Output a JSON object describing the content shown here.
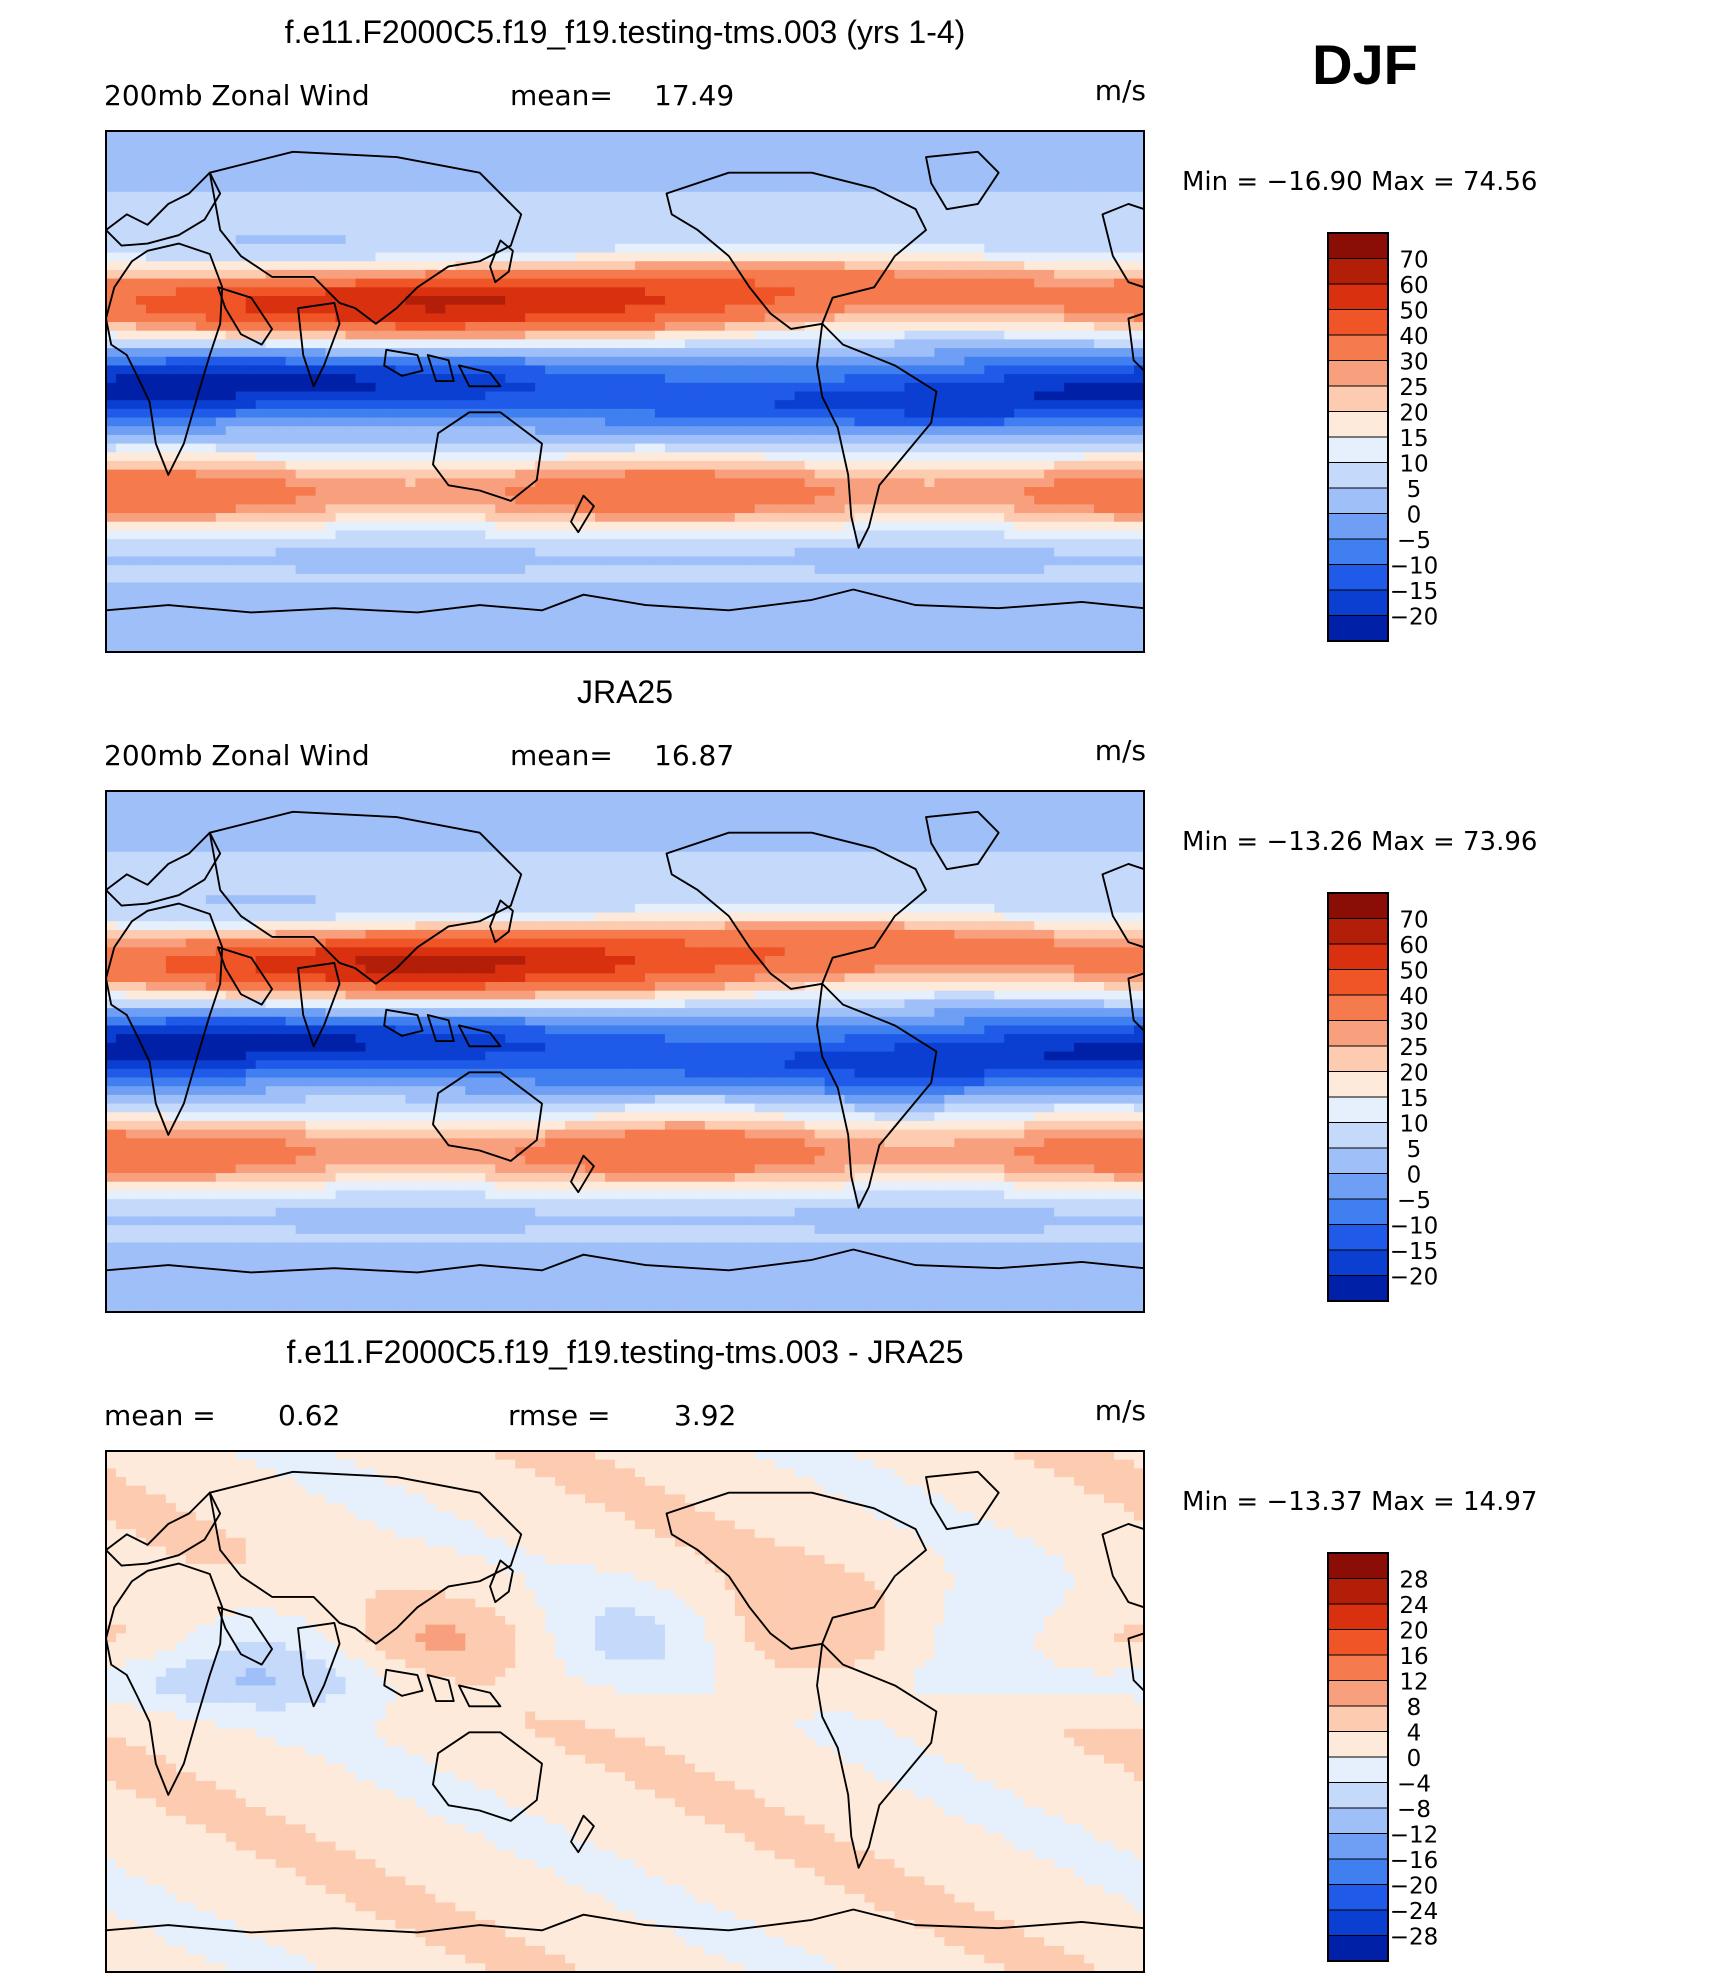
{
  "season": "DJF",
  "panels": [
    {
      "title": "f.e11.F2000C5.f19_f19.testing-tms.003 (yrs 1-4)",
      "left_label": "200mb  Zonal  Wind",
      "center_label": "mean=",
      "center_value": "17.49",
      "units": "m/s",
      "min_label": "Min",
      "min_value": "−16.90",
      "max_label": "Max",
      "max_value": "74.56",
      "palette": "full",
      "colorbar_labels": [
        "70",
        "60",
        "50",
        "40",
        "30",
        "25",
        "20",
        "15",
        "10",
        "5",
        "0",
        "−5",
        "−10",
        "−15",
        "−20"
      ],
      "field": "model"
    },
    {
      "title": "JRA25",
      "left_label": "200mb  Zonal  Wind",
      "center_label": "mean=",
      "center_value": "16.87",
      "units": "m/s",
      "min_label": "Min",
      "min_value": "−13.26",
      "max_label": "Max",
      "max_value": "73.96",
      "palette": "full",
      "colorbar_labels": [
        "70",
        "60",
        "50",
        "40",
        "30",
        "25",
        "20",
        "15",
        "10",
        "5",
        "0",
        "−5",
        "−10",
        "−15",
        "−20"
      ],
      "field": "obs"
    },
    {
      "title": "f.e11.F2000C5.f19_f19.testing-tms.003 - JRA25",
      "left_label": "mean  =",
      "left_value": "0.62",
      "center_label": "rmse  =",
      "center_value": "3.92",
      "units": "m/s",
      "min_label": "Min",
      "min_value": "−13.37",
      "max_label": "Max",
      "max_value": "14.97",
      "palette": "diff",
      "colorbar_labels": [
        "28",
        "24",
        "20",
        "16",
        "12",
        "8",
        "4",
        "0",
        "−4",
        "−8",
        "−12",
        "−16",
        "−20",
        "−24",
        "−28"
      ],
      "field": "diff"
    }
  ],
  "palettes": {
    "full": [
      "#000080",
      "#0020a8",
      "#0a3fd2",
      "#1f5be8",
      "#3f7ff0",
      "#6f9ff4",
      "#9fbff8",
      "#c5d9fb",
      "#e6f0fc",
      "#fdeadb",
      "#fccbb0",
      "#f8a07e",
      "#f57a4e",
      "#ef5526",
      "#d9300f",
      "#b31e08",
      "#8a0e05"
    ],
    "diff": [
      "#000080",
      "#0020a8",
      "#0a3fd2",
      "#1f5be8",
      "#3f7ff0",
      "#6f9ff4",
      "#9fbff8",
      "#c5d9fb",
      "#e6f0fc",
      "#fdeadb",
      "#fccbb0",
      "#f8a07e",
      "#f57a4e",
      "#ef5526",
      "#d9300f",
      "#b31e08",
      "#8a0e05"
    ]
  }
}
